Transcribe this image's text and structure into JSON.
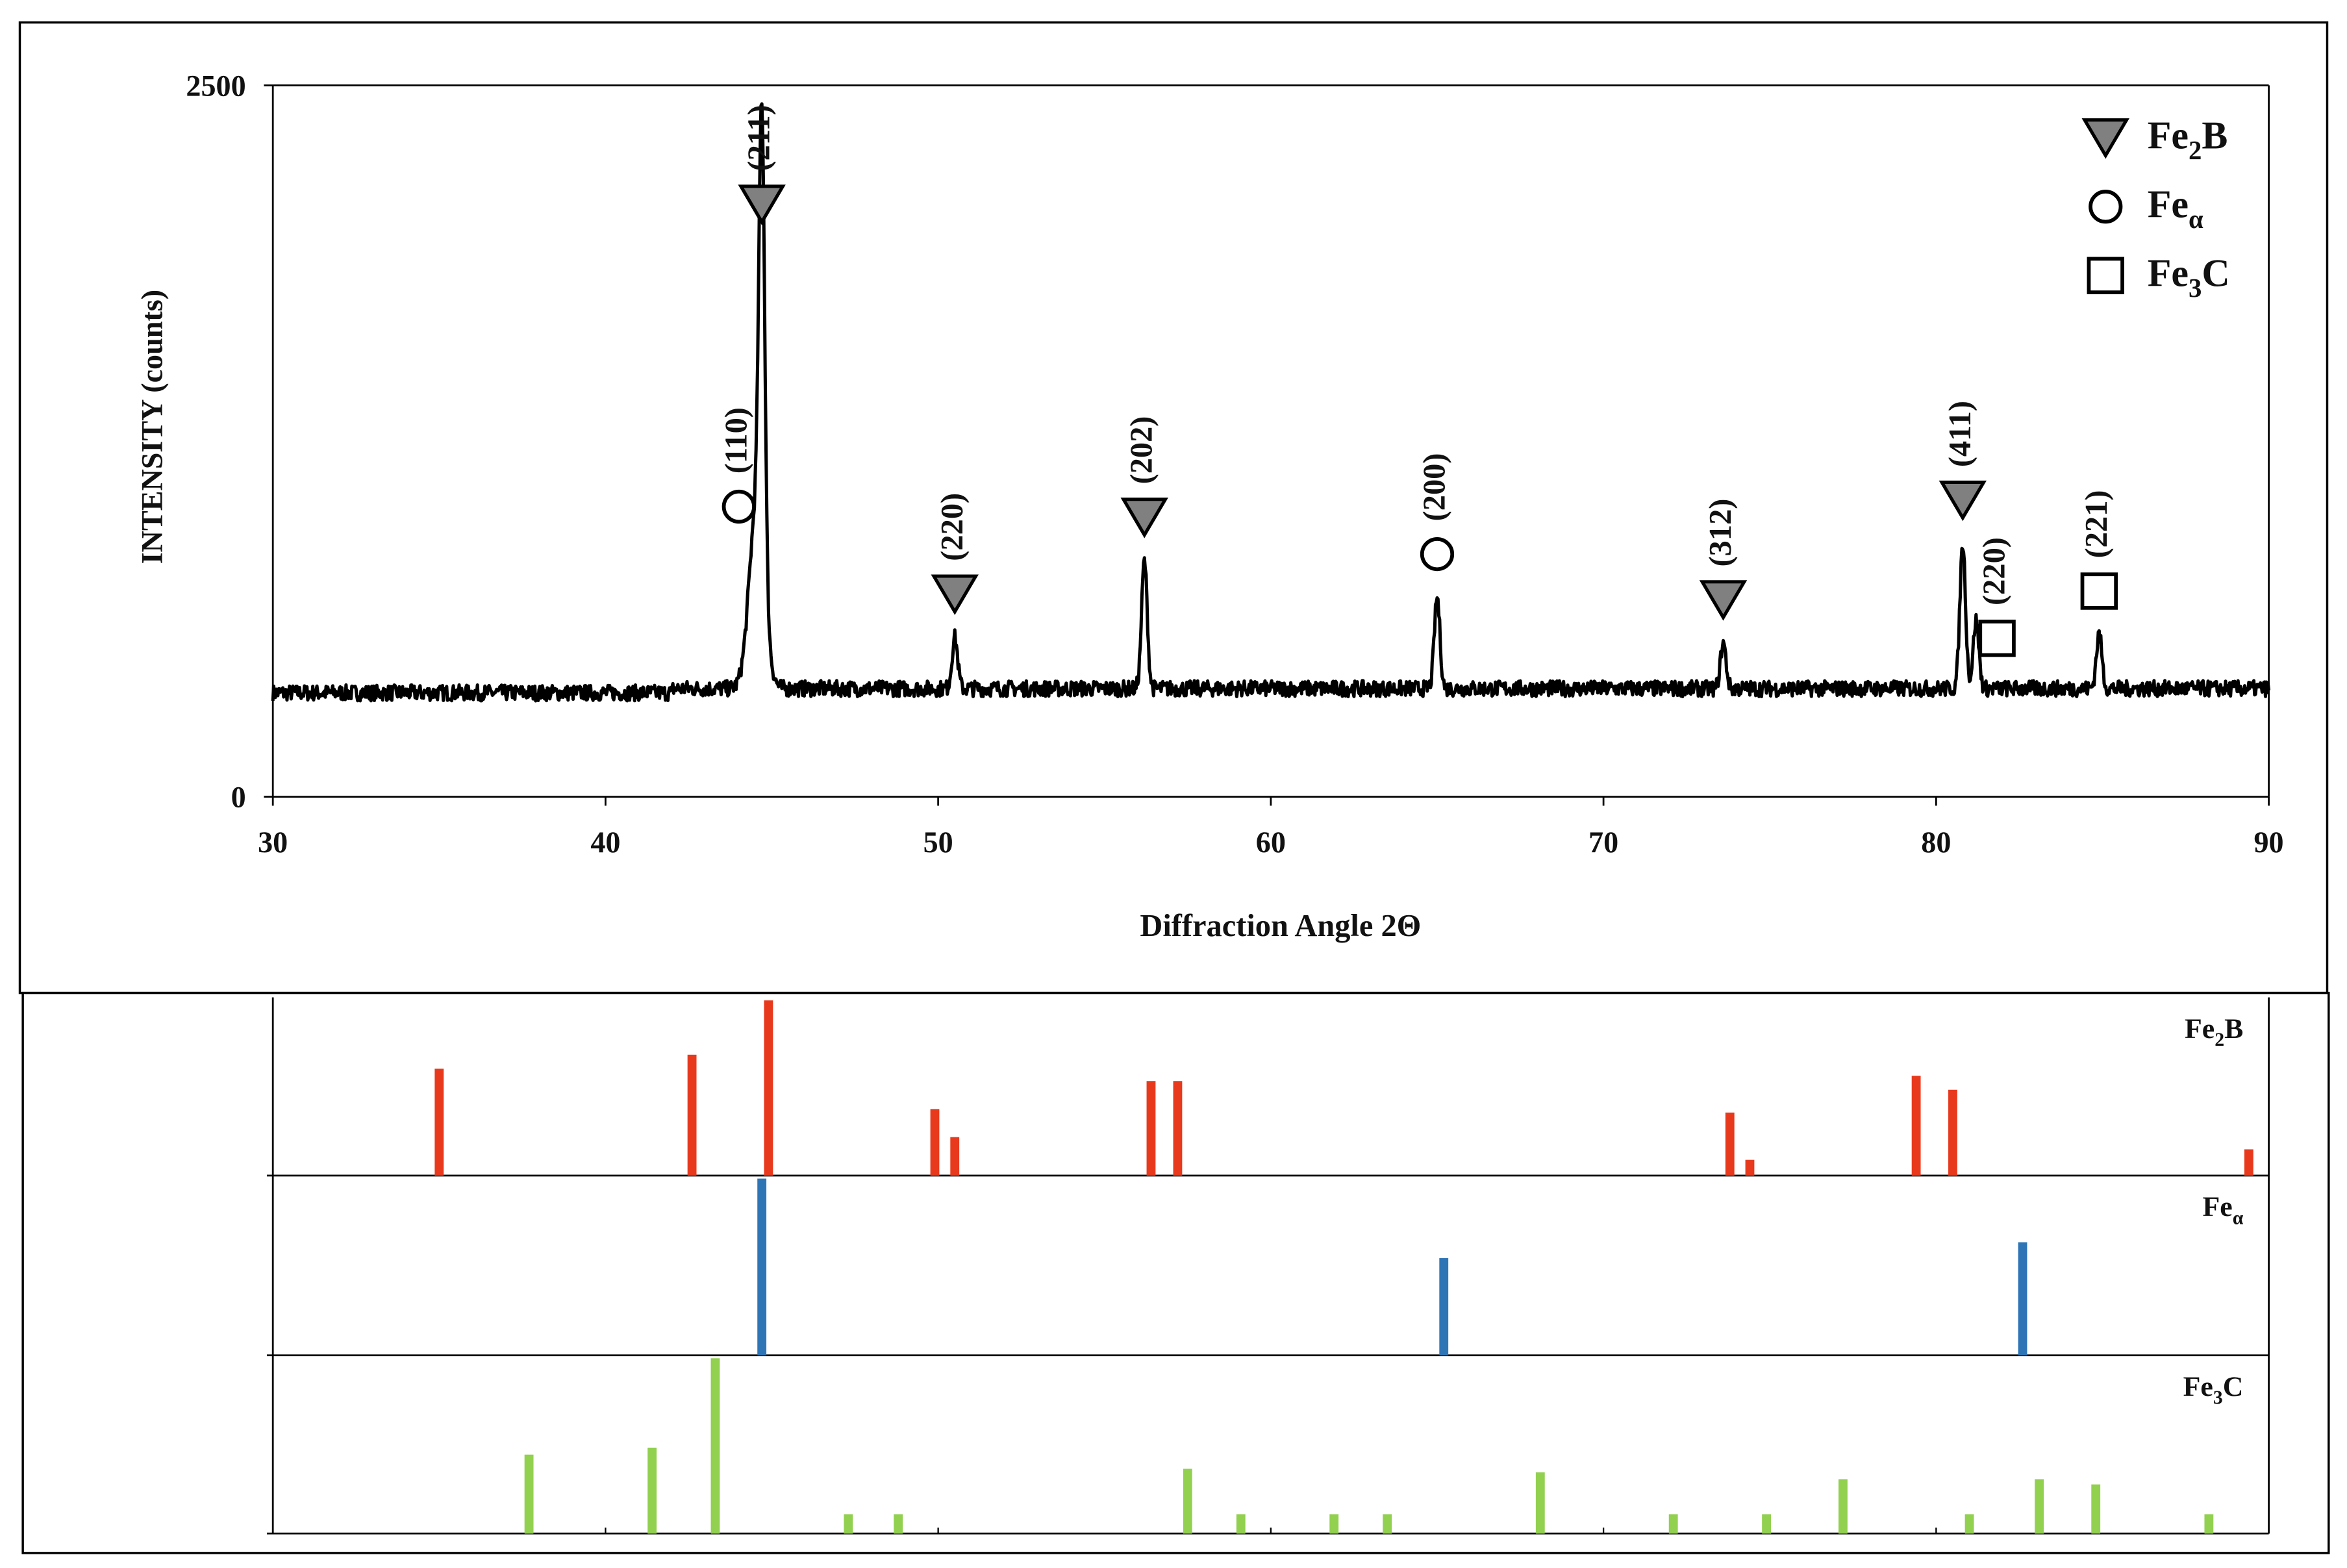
{
  "chart_data": [
    {
      "type": "line",
      "title": "",
      "xlabel": "Diffraction Angle 2Θ",
      "ylabel": "INTENSITY (counts)",
      "xlim": [
        30,
        90
      ],
      "ylim": [
        0,
        2500
      ],
      "x_ticks": [
        "30",
        "40",
        "50",
        "60",
        "70",
        "80",
        "90"
      ],
      "y_ticks": [
        "0",
        "2500"
      ],
      "grid": false,
      "legend_position": "top-right",
      "legend": [
        {
          "symbol": "filled-down-triangle",
          "label_main": "Fe",
          "label_sub": "2",
          "label_tail": "B"
        },
        {
          "symbol": "open-circle",
          "label_main": "Fe",
          "label_sub": "α",
          "label_tail": ""
        },
        {
          "symbol": "open-square",
          "label_main": "Fe",
          "label_sub": "3",
          "label_tail": "C"
        }
      ],
      "baseline_intensity": 380,
      "noise_amplitude": 28,
      "peaks": [
        {
          "x": 44.7,
          "y": 1930,
          "phase": "Fe2B",
          "label": "(211)"
        },
        {
          "x": 44.55,
          "y": 1030,
          "phase": "Fea",
          "label": "(110)"
        },
        {
          "x": 50.5,
          "y": 560,
          "phase": "Fe2B",
          "label": "(220)"
        },
        {
          "x": 56.2,
          "y": 830,
          "phase": "Fe2B",
          "label": "(202)"
        },
        {
          "x": 65.0,
          "y": 700,
          "phase": "Fea",
          "label": "(200)"
        },
        {
          "x": 73.6,
          "y": 540,
          "phase": "Fe2B",
          "label": "(312)"
        },
        {
          "x": 80.8,
          "y": 890,
          "phase": "Fe2B",
          "label": "(411)"
        },
        {
          "x": 81.2,
          "y": 620,
          "phase": "Fe3C",
          "label": "(220)"
        },
        {
          "x": 84.9,
          "y": 570,
          "phase": "Fe3C",
          "label": "(221)"
        }
      ]
    },
    {
      "type": "bar",
      "title": "",
      "xlim": [
        30,
        90
      ],
      "panels": [
        {
          "name_main": "Fe",
          "name_sub": "2",
          "name_tail": "B",
          "color": "#e8391d",
          "ylim": [
            0,
            100
          ],
          "peaks": [
            {
              "x": 35.0,
              "y": 61
            },
            {
              "x": 42.6,
              "y": 69
            },
            {
              "x": 44.9,
              "y": 100
            },
            {
              "x": 49.9,
              "y": 38
            },
            {
              "x": 50.5,
              "y": 22
            },
            {
              "x": 56.4,
              "y": 54
            },
            {
              "x": 57.2,
              "y": 54
            },
            {
              "x": 73.8,
              "y": 36
            },
            {
              "x": 74.4,
              "y": 9
            },
            {
              "x": 79.4,
              "y": 57
            },
            {
              "x": 80.5,
              "y": 49
            },
            {
              "x": 89.4,
              "y": 15
            }
          ]
        },
        {
          "name_main": "Fe",
          "name_sub": "α",
          "name_tail": "",
          "color": "#2e75b6",
          "ylim": [
            0,
            100
          ],
          "peaks": [
            {
              "x": 44.7,
              "y": 100
            },
            {
              "x": 65.2,
              "y": 55
            },
            {
              "x": 82.6,
              "y": 64
            }
          ]
        },
        {
          "name_main": "Fe",
          "name_sub": "3",
          "name_tail": "C",
          "color": "#92d050",
          "ylim": [
            0,
            100
          ],
          "peaks": [
            {
              "x": 37.7,
              "y": 45
            },
            {
              "x": 41.4,
              "y": 49
            },
            {
              "x": 43.3,
              "y": 100
            },
            {
              "x": 47.3,
              "y": 11
            },
            {
              "x": 48.8,
              "y": 11
            },
            {
              "x": 57.5,
              "y": 37
            },
            {
              "x": 59.1,
              "y": 11
            },
            {
              "x": 61.9,
              "y": 11
            },
            {
              "x": 63.5,
              "y": 11
            },
            {
              "x": 68.1,
              "y": 35
            },
            {
              "x": 72.1,
              "y": 11
            },
            {
              "x": 74.9,
              "y": 11
            },
            {
              "x": 77.2,
              "y": 31
            },
            {
              "x": 81.0,
              "y": 11
            },
            {
              "x": 83.1,
              "y": 31
            },
            {
              "x": 84.8,
              "y": 28
            },
            {
              "x": 88.2,
              "y": 11
            }
          ]
        }
      ]
    }
  ]
}
